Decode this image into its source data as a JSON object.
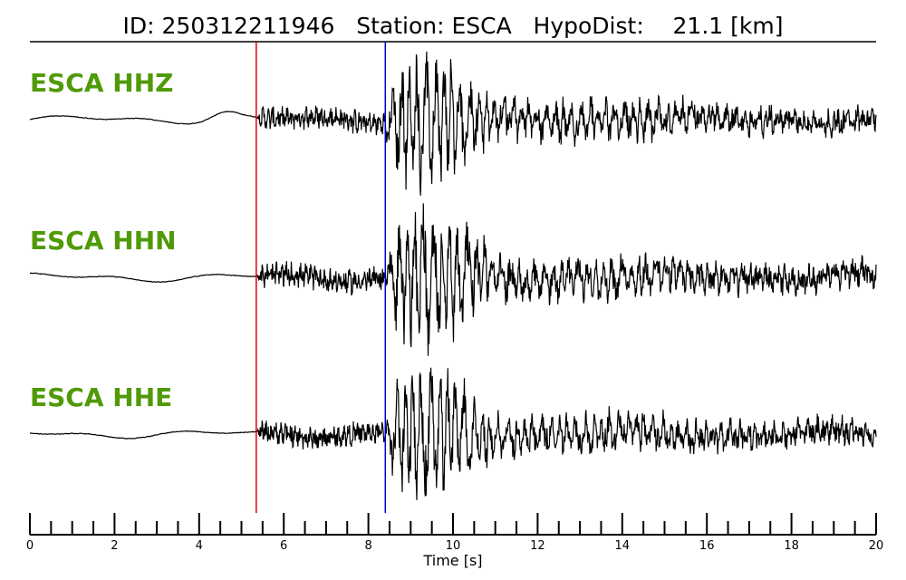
{
  "chart_data": {
    "type": "line",
    "title": "ID: 250312211946   Station: ESCA   HypoDist:    21.1 [km]",
    "xlabel": "Time [s]",
    "xlim": [
      0,
      20
    ],
    "x_ticks": [
      "0",
      "2",
      "4",
      "6",
      "8",
      "10",
      "12",
      "14",
      "16",
      "18",
      "20"
    ],
    "minor_tick_step": 0.5,
    "grid": false,
    "series": [
      {
        "name": "ESCA HHZ",
        "color": "#000000"
      },
      {
        "name": "ESCA HHN",
        "color": "#000000"
      },
      {
        "name": "ESCA HHE",
        "color": "#000000"
      }
    ],
    "markers": [
      {
        "time": 5.35,
        "color": "#e00000"
      },
      {
        "time": 8.4,
        "color": "#0000cc"
      }
    ]
  }
}
